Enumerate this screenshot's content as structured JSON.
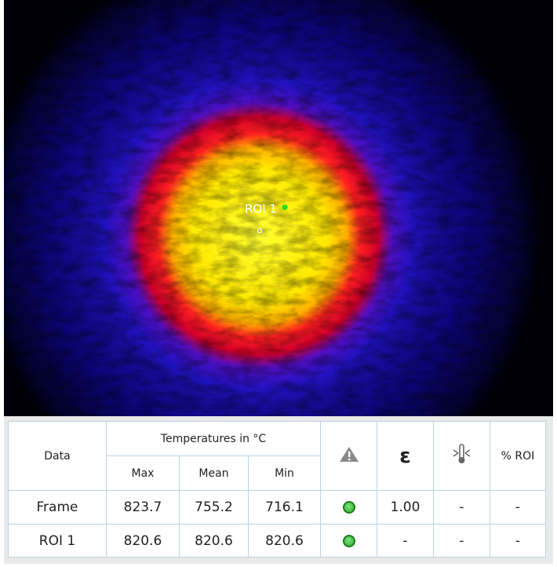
{
  "image": {
    "roi_label": "ROI 1"
  },
  "table": {
    "header": {
      "data": "Data",
      "temperatures": "Temperatures in °C",
      "max": "Max",
      "mean": "Mean",
      "min": "Min",
      "emissivity": "ε",
      "roi_percent": "% ROI"
    },
    "rows": [
      [
        "Frame",
        "823.7",
        "755.2",
        "716.1",
        "1.00",
        "-",
        "-"
      ],
      [
        "ROI 1",
        "820.6",
        "820.6",
        "820.6",
        "-",
        "-",
        "-"
      ]
    ]
  }
}
